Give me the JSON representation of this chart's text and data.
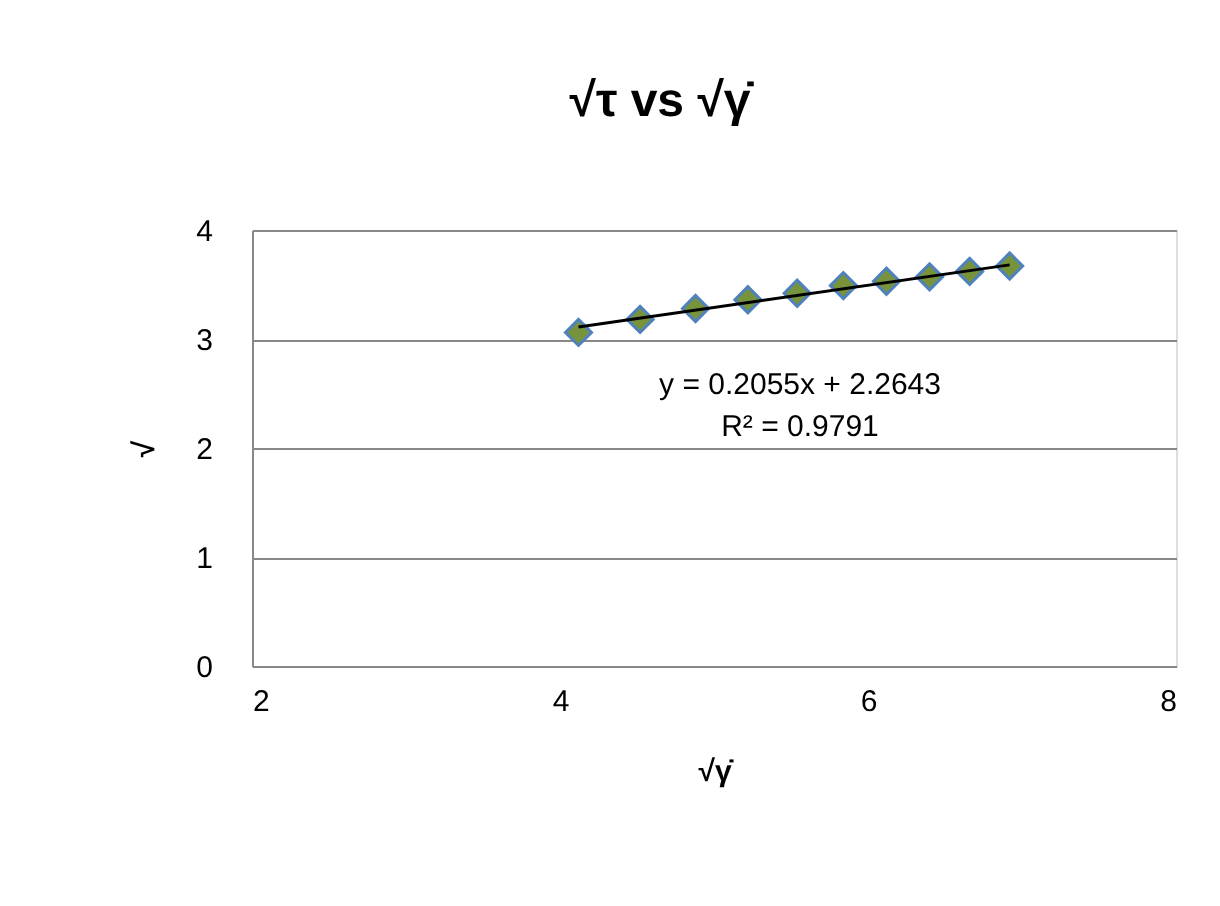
{
  "chart_data": {
    "type": "scatter",
    "title": "√τ vs √γ̇",
    "xlabel": "√γ̇",
    "ylabel": "√",
    "xlim": [
      2,
      8
    ],
    "xticks": [
      2,
      4,
      6,
      8
    ],
    "ylim": [
      0,
      4
    ],
    "yticks": [
      0,
      1,
      2,
      3,
      4
    ],
    "grid": "y",
    "series": [
      {
        "color": "#77933c",
        "marker": "diamond",
        "x": [
          4.12,
          4.52,
          4.88,
          5.22,
          5.54,
          5.84,
          6.12,
          6.4,
          6.66,
          6.92
        ],
        "values": [
          3.06,
          3.18,
          3.28,
          3.36,
          3.42,
          3.49,
          3.53,
          3.57,
          3.62,
          3.67
        ]
      },
      {
        "type": "line",
        "color": "#000000",
        "marker": "none",
        "x": [
          4.12,
          6.92
        ],
        "values": [
          3.11,
          3.68
        ]
      }
    ],
    "annotations": [
      "y = 0.2055x + 2.2643",
      "R² = 0.9791"
    ]
  }
}
